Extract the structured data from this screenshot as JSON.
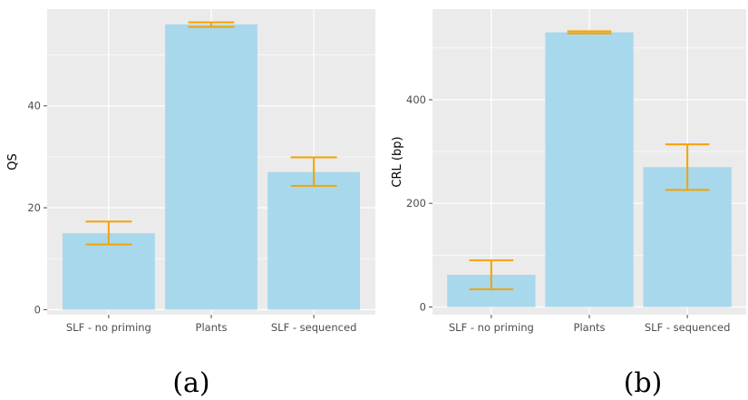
{
  "chart_data": [
    {
      "type": "bar",
      "panel_label": "(a)",
      "categories": [
        "SLF - no priming",
        "Plants",
        "SLF - sequenced"
      ],
      "values": [
        15.0,
        56.0,
        27.0
      ],
      "error_low": [
        12.8,
        55.5,
        24.3
      ],
      "error_high": [
        17.3,
        56.4,
        29.9
      ],
      "xlabel": "",
      "ylabel": "QS",
      "ylim": [
        -1,
        59
      ],
      "yticks": [
        0,
        20,
        40
      ],
      "ytick_labels": [
        "0",
        "20",
        "40"
      ],
      "grid": true,
      "bar_color": "#a8d8ec",
      "error_color": "#f5a300",
      "panel_bg": "#ebebeb",
      "grid_color": "#ffffff"
    },
    {
      "type": "bar",
      "panel_label": "(b)",
      "categories": [
        "SLF - no priming",
        "Plants",
        "SLF - sequenced"
      ],
      "values": [
        62,
        530,
        270
      ],
      "error_low": [
        34,
        528,
        226
      ],
      "error_high": [
        90,
        532,
        314
      ],
      "xlabel": "",
      "ylabel": "CRL (bp)",
      "ylim": [
        -15,
        575
      ],
      "yticks": [
        0,
        200,
        400
      ],
      "ytick_labels": [
        "0",
        "200",
        "400"
      ],
      "grid": true,
      "bar_color": "#a8d8ec",
      "error_color": "#f5a300",
      "panel_bg": "#ebebeb",
      "grid_color": "#ffffff"
    }
  ]
}
